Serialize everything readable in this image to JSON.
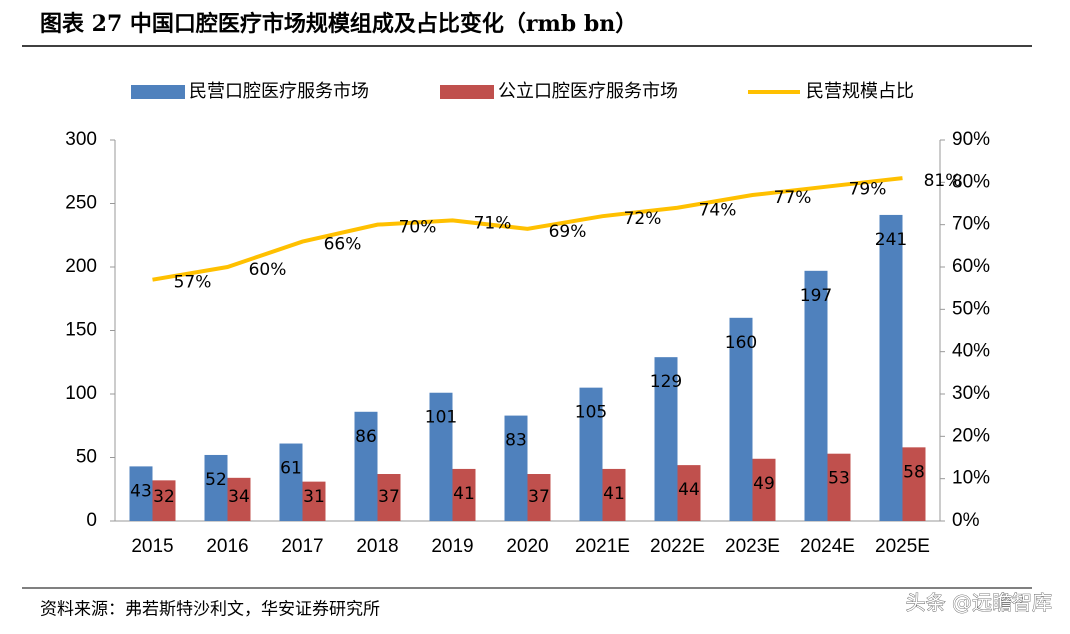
{
  "chart_data": {
    "type": "bar",
    "title": "图表 27  中国口腔医疗市场规模组成及占比变化（rmb bn）",
    "source": "资料来源：弗若斯特沙利文，华安证券研究所",
    "watermark": "头条 @远瞻智库",
    "categories": [
      "2015",
      "2016",
      "2017",
      "2018",
      "2019",
      "2020",
      "2021E",
      "2022E",
      "2023E",
      "2024E",
      "2025E"
    ],
    "series": [
      {
        "name": "民营口腔医疗服务市场",
        "color": "#4f81bd",
        "values": [
          43,
          52,
          61,
          86,
          101,
          83,
          105,
          129,
          160,
          197,
          241
        ]
      },
      {
        "name": "公立口腔医疗服务市场",
        "color": "#c0504d",
        "values": [
          32,
          34,
          31,
          37,
          41,
          37,
          41,
          44,
          49,
          53,
          58
        ]
      },
      {
        "name": "民营规模占比",
        "color": "#ffc000",
        "type": "line",
        "axis": "y2",
        "values": [
          57,
          60,
          66,
          70,
          71,
          69,
          72,
          74,
          77,
          79,
          81
        ],
        "value_labels": [
          "57%",
          "60%",
          "66%",
          "70%",
          "71%",
          "69%",
          "72%",
          "74%",
          "77%",
          "79%",
          "81%"
        ]
      }
    ],
    "ylim": [
      0,
      300
    ],
    "yticks": [
      0,
      50,
      100,
      150,
      200,
      250,
      300
    ],
    "y2lim": [
      0,
      90
    ],
    "y2ticks": [
      {
        "value": 0,
        "label": "0%"
      },
      {
        "value": 10,
        "label": "10%"
      },
      {
        "value": 20,
        "label": "20%"
      },
      {
        "value": 30,
        "label": "30%"
      },
      {
        "value": 40,
        "label": "40%"
      },
      {
        "value": 50,
        "label": "50%"
      },
      {
        "value": 60,
        "label": "60%"
      },
      {
        "value": 70,
        "label": "70%"
      },
      {
        "value": 80,
        "label": "80%"
      },
      {
        "value": 90,
        "label": "90%"
      }
    ],
    "legend": "top",
    "grid": false
  }
}
